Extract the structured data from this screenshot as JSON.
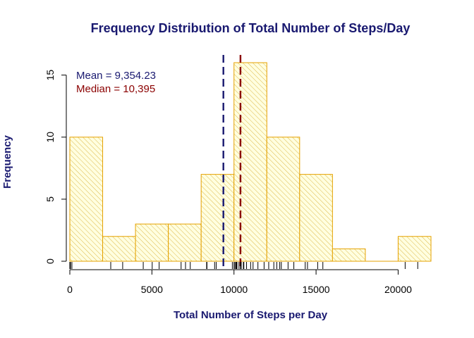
{
  "chart_data": {
    "type": "histogram",
    "title": "Frequency Distribution of Total Number of Steps/Day",
    "xlabel": "Total Number of Steps per Day",
    "ylabel": "Frequency",
    "xlim": [
      0,
      22000
    ],
    "ylim": [
      0,
      16
    ],
    "x_ticks": [
      0,
      5000,
      10000,
      15000,
      20000
    ],
    "x_tick_labels": [
      "0",
      "5000",
      "10000",
      "15000",
      "20000"
    ],
    "y_ticks": [
      0,
      5,
      10,
      15
    ],
    "y_tick_labels": [
      "0",
      "5",
      "10",
      "15"
    ],
    "bins": [
      {
        "from": 0,
        "to": 2000,
        "count": 10
      },
      {
        "from": 2000,
        "to": 4000,
        "count": 2
      },
      {
        "from": 4000,
        "to": 6000,
        "count": 3
      },
      {
        "from": 6000,
        "to": 8000,
        "count": 3
      },
      {
        "from": 8000,
        "to": 10000,
        "count": 7
      },
      {
        "from": 10000,
        "to": 12000,
        "count": 16
      },
      {
        "from": 12000,
        "to": 14000,
        "count": 10
      },
      {
        "from": 14000,
        "to": 16000,
        "count": 7
      },
      {
        "from": 16000,
        "to": 18000,
        "count": 1
      },
      {
        "from": 18000,
        "to": 20000,
        "count": 0
      },
      {
        "from": 20000,
        "to": 22000,
        "count": 2
      }
    ],
    "rug": [
      0,
      41,
      126,
      2492,
      3219,
      4472,
      5018,
      5441,
      6778,
      7047,
      7336,
      8334,
      8355,
      8821,
      8918,
      9900,
      10000,
      10056,
      10119,
      10139,
      10183,
      10304,
      10395,
      10439,
      10571,
      10600,
      10765,
      11015,
      11162,
      11458,
      11834,
      12116,
      12426,
      12608,
      12787,
      12883,
      13294,
      13646,
      14339,
      14478,
      15098,
      15414,
      20427,
      21194
    ],
    "reference_lines": [
      {
        "name": "Mean",
        "value": 9354.23,
        "color": "#191970"
      },
      {
        "name": "Median",
        "value": 10395,
        "color": "#8b0000"
      }
    ],
    "annotations": {
      "mean_text": "Mean = 9,354.23",
      "median_text": "Median = 10,395"
    },
    "bar_fill": "#ffffe0",
    "bar_border": "#e5a100",
    "hatch_color": "#ddb84a"
  }
}
